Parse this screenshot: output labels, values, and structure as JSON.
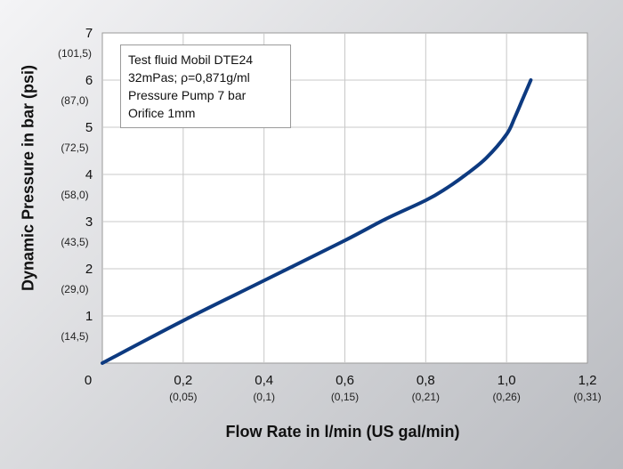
{
  "chart_data": {
    "type": "line",
    "xlabel": "Flow Rate in l/min (US gal/min)",
    "ylabel": "Dynamic Pressure in bar (psi)",
    "xlim": [
      0,
      1.2
    ],
    "ylim": [
      0,
      7
    ],
    "grid": true,
    "x_ticks": [
      {
        "value": 0,
        "label": "0",
        "sublabel": ""
      },
      {
        "value": 0.2,
        "label": "0,2",
        "sublabel": "(0,05)"
      },
      {
        "value": 0.4,
        "label": "0,4",
        "sublabel": "(0,1)"
      },
      {
        "value": 0.6,
        "label": "0,6",
        "sublabel": "(0,15)"
      },
      {
        "value": 0.8,
        "label": "0,8",
        "sublabel": "(0,21)"
      },
      {
        "value": 1.0,
        "label": "1,0",
        "sublabel": "(0,26)"
      },
      {
        "value": 1.2,
        "label": "1,2",
        "sublabel": "(0,31)"
      }
    ],
    "y_ticks": [
      {
        "value": 1,
        "label": "1",
        "sublabel": "(14,5)"
      },
      {
        "value": 2,
        "label": "2",
        "sublabel": "(29,0)"
      },
      {
        "value": 3,
        "label": "3",
        "sublabel": "(43,5)"
      },
      {
        "value": 4,
        "label": "4",
        "sublabel": "(58,0)"
      },
      {
        "value": 5,
        "label": "5",
        "sublabel": "(72,5)"
      },
      {
        "value": 6,
        "label": "6",
        "sublabel": "(87,0)"
      },
      {
        "value": 7,
        "label": "7",
        "sublabel": "(101,5)"
      }
    ],
    "annotation_lines": [
      "Test fluid Mobil DTE24",
      "32mPas; ρ=0,871g/ml",
      "Pressure Pump 7 bar",
      "Orifice 1mm"
    ],
    "series": [
      {
        "color": "#0d3a80",
        "x": [
          0,
          0.2,
          0.4,
          0.6,
          0.7,
          0.8,
          0.85,
          0.9,
          0.95,
          1.0,
          1.02,
          1.04,
          1.06
        ],
        "y": [
          0,
          0.9,
          1.75,
          2.6,
          3.05,
          3.45,
          3.7,
          4.0,
          4.35,
          4.85,
          5.2,
          5.6,
          6.0
        ]
      }
    ]
  }
}
